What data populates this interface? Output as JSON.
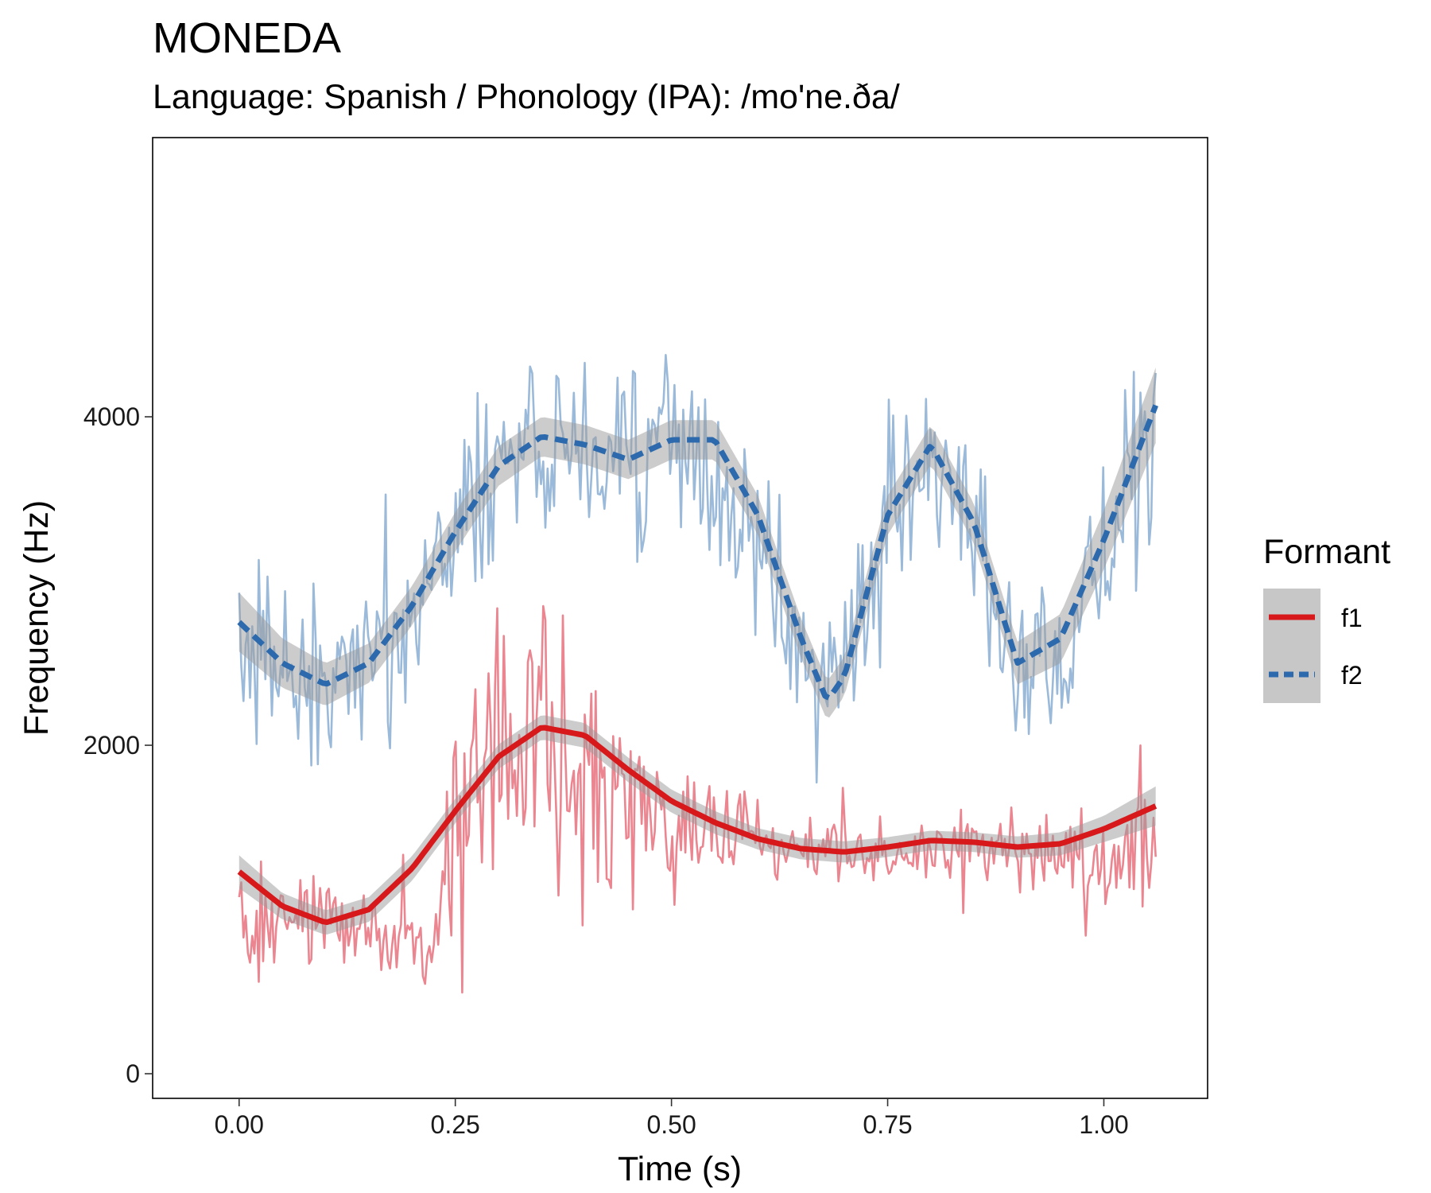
{
  "chart_data": {
    "type": "line",
    "title": "MONEDA",
    "subtitle": "Language: Spanish / Phonology (IPA): /mo'ne.ða/",
    "xlabel": "Time (s)",
    "ylabel": "Frequency (Hz)",
    "xlim": [
      -0.1,
      1.12
    ],
    "ylim": [
      -150,
      5700
    ],
    "x_ticks": [
      0.0,
      0.25,
      0.5,
      0.75,
      1.0
    ],
    "x_tick_labels": [
      "0.00",
      "0.25",
      "0.50",
      "0.75",
      "1.00"
    ],
    "y_ticks": [
      0,
      2000,
      4000
    ],
    "y_tick_labels": [
      "0",
      "2000",
      "4000"
    ],
    "grid": false,
    "legend": {
      "title": "Formant",
      "position": "right"
    },
    "x_range": [
      0.0,
      1.06
    ],
    "raw_point_count": 420,
    "series": [
      {
        "name": "f1",
        "color": "#d7191c",
        "raw_color": "#e8707c",
        "line_style": "solid",
        "smooth": {
          "x": [
            0.0,
            0.05,
            0.1,
            0.15,
            0.2,
            0.25,
            0.3,
            0.35,
            0.4,
            0.45,
            0.5,
            0.55,
            0.6,
            0.65,
            0.7,
            0.75,
            0.8,
            0.85,
            0.9,
            0.95,
            1.0,
            1.06
          ],
          "y": [
            1230,
            1020,
            920,
            1000,
            1250,
            1600,
            1930,
            2110,
            2060,
            1850,
            1660,
            1530,
            1430,
            1370,
            1350,
            1380,
            1420,
            1410,
            1380,
            1400,
            1490,
            1630
          ],
          "se": [
            100,
            80,
            75,
            75,
            75,
            75,
            75,
            75,
            75,
            75,
            70,
            70,
            65,
            65,
            65,
            60,
            60,
            60,
            65,
            70,
            80,
            120
          ]
        },
        "raw_anchors": {
          "x": [
            0.0,
            0.1,
            0.2,
            0.23,
            0.25,
            0.3,
            0.35,
            0.4,
            0.45,
            0.5,
            0.55,
            0.6,
            0.7,
            0.8,
            0.9,
            1.0,
            1.06
          ],
          "center": [
            900,
            950,
            800,
            800,
            1700,
            1950,
            2050,
            1900,
            1700,
            1600,
            1500,
            1400,
            1350,
            1400,
            1350,
            1350,
            1300
          ],
          "spread": [
            500,
            450,
            350,
            350,
            1100,
            1200,
            1300,
            1300,
            1000,
            800,
            500,
            350,
            300,
            300,
            350,
            450,
            600
          ]
        }
      },
      {
        "name": "f2",
        "color": "#2c6aad",
        "raw_color": "#8aaed4",
        "line_style": "dashed",
        "smooth": {
          "x": [
            0.0,
            0.05,
            0.1,
            0.15,
            0.2,
            0.25,
            0.3,
            0.35,
            0.4,
            0.45,
            0.5,
            0.55,
            0.6,
            0.65,
            0.68,
            0.7,
            0.75,
            0.8,
            0.85,
            0.9,
            0.95,
            1.0,
            1.06
          ],
          "y": [
            2750,
            2500,
            2370,
            2500,
            2850,
            3300,
            3700,
            3880,
            3830,
            3740,
            3860,
            3860,
            3400,
            2650,
            2270,
            2420,
            3400,
            3830,
            3350,
            2500,
            2650,
            3250,
            4070
          ],
          "se": [
            180,
            150,
            130,
            120,
            120,
            120,
            120,
            120,
            120,
            120,
            120,
            120,
            120,
            120,
            120,
            120,
            120,
            120,
            120,
            130,
            150,
            180,
            230
          ]
        },
        "raw_anchors": {
          "x": [
            0.0,
            0.1,
            0.2,
            0.25,
            0.3,
            0.35,
            0.4,
            0.45,
            0.5,
            0.55,
            0.6,
            0.65,
            0.68,
            0.75,
            0.8,
            0.85,
            0.9,
            0.95,
            1.0,
            1.06
          ],
          "center": [
            2600,
            2300,
            2800,
            3300,
            3700,
            3800,
            3800,
            3700,
            3800,
            3700,
            3200,
            2600,
            2300,
            3300,
            3600,
            3200,
            2500,
            2600,
            3200,
            3800
          ],
          "spread": [
            900,
            800,
            800,
            850,
            900,
            900,
            850,
            850,
            1000,
            850,
            850,
            900,
            900,
            900,
            850,
            900,
            900,
            900,
            1000,
            1100
          ]
        }
      }
    ]
  }
}
